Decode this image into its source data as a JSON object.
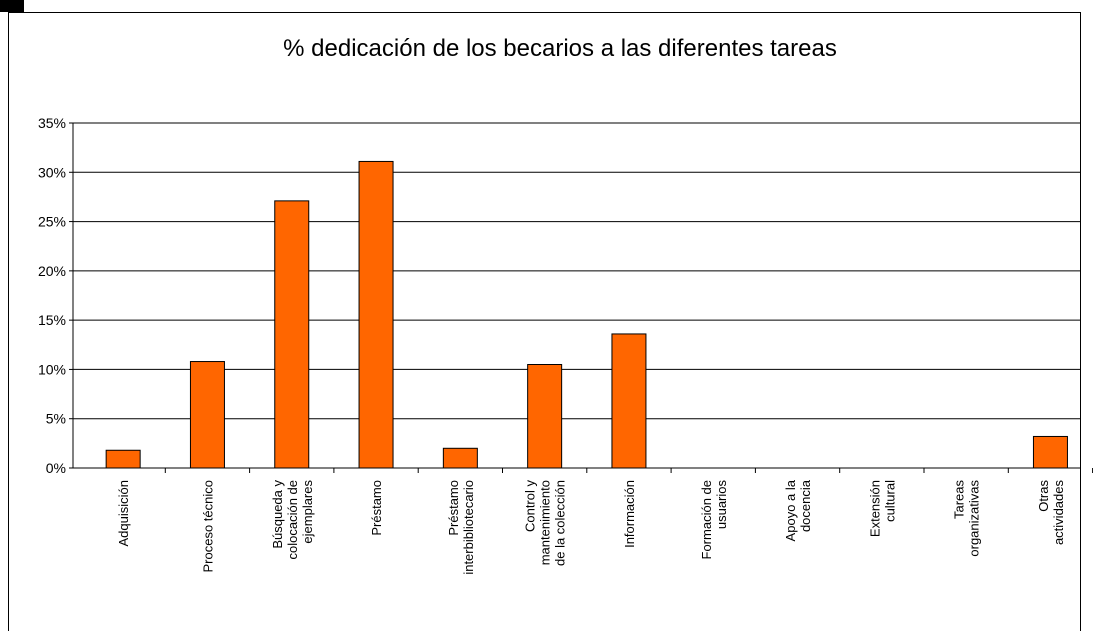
{
  "chart_data": {
    "type": "bar",
    "title": "% dedicación de los becarios a las diferentes tareas",
    "categories": [
      "Adquisición",
      "Proceso técnico",
      "Búsqueda y\ncolocación de\nejemplares",
      "Préstamo",
      "Préstamo\ninterbibliotecario",
      "Control y\nmantenimiento\nde la colección",
      "Información",
      "Formación de\nusuarios",
      "Apoyo a la\ndocencia",
      "Extensión\ncultural",
      "Tareas\norganizativas",
      "Otras\nactividades"
    ],
    "values": [
      1.8,
      10.8,
      27.1,
      31.1,
      2.0,
      10.5,
      13.6,
      0,
      0,
      0,
      0,
      3.2
    ],
    "color": "#ff6600",
    "ylim": [
      0,
      35
    ],
    "yticks": [
      {
        "value": 0,
        "label": "0%"
      },
      {
        "value": 5,
        "label": "5%"
      },
      {
        "value": 10,
        "label": "10%"
      },
      {
        "value": 15,
        "label": "15%"
      },
      {
        "value": 20,
        "label": "20%"
      },
      {
        "value": 25,
        "label": "25%"
      },
      {
        "value": 30,
        "label": "30%"
      },
      {
        "value": 35,
        "label": "35%"
      }
    ],
    "grid": true
  }
}
